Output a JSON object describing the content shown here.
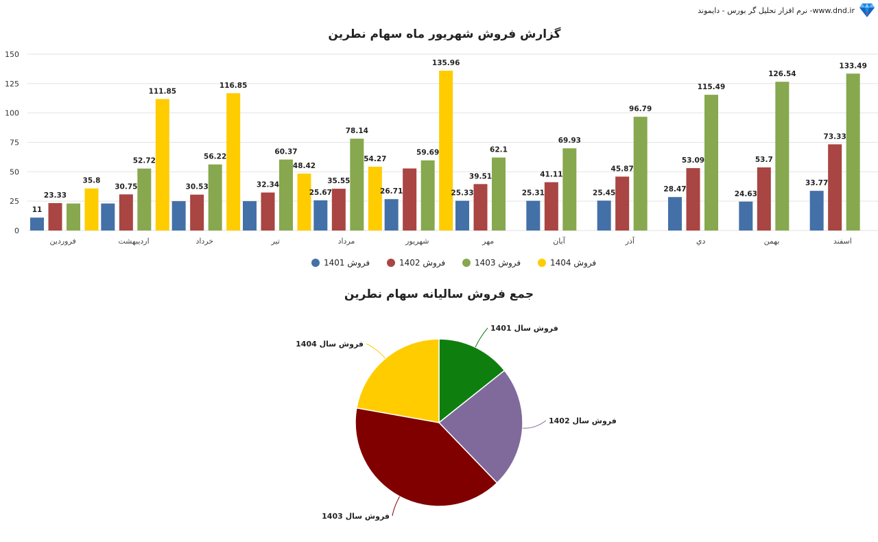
{
  "header": {
    "brand_text": "نرم افزار تحلیل گر بورس - دایموند -www.dnd.ir",
    "logo_icon": "diamond-icon"
  },
  "colors": {
    "s1401": "#4470A8",
    "s1402": "#A94542",
    "s1403": "#87A84E",
    "s1404": "#FFCC00",
    "pie1401": "#0E7F0E",
    "pie1402": "#7F6A9B",
    "pie1403": "#800000",
    "pie1404": "#FFCC00",
    "grid": "#E2E2E2"
  },
  "chart_data": [
    {
      "type": "bar",
      "title": "گزارش فروش شهریور ماه سهام نطرین",
      "xlabel": "",
      "ylabel": "",
      "ylim": [
        0,
        150
      ],
      "yticks": [
        0,
        25,
        50,
        75,
        100,
        125,
        150
      ],
      "grid": true,
      "legend_position": "bottom",
      "categories": [
        "فروردین",
        "اردیبهشت",
        "خرداد",
        "تیر",
        "مرداد",
        "شهریور",
        "مهر",
        "آبان",
        "آذر",
        "دي",
        "بهمن",
        "اسفند"
      ],
      "series": [
        {
          "name": "فروش 1401",
          "color": "#4470A8",
          "values": [
            11,
            23.0,
            25.0,
            25.0,
            25.67,
            26.71,
            25.33,
            25.31,
            25.45,
            28.47,
            24.63,
            33.77
          ],
          "labels": [
            "11",
            "",
            "",
            "",
            "25.67",
            "26.71",
            "25.33",
            "25.31",
            "25.45",
            "28.47",
            "24.63",
            "33.77"
          ]
        },
        {
          "name": "فروش 1402",
          "color": "#A94542",
          "values": [
            23.33,
            30.75,
            30.53,
            32.34,
            35.55,
            52.8,
            39.51,
            41.11,
            45.87,
            53.09,
            53.7,
            73.33
          ],
          "labels": [
            "23.33",
            "30.75",
            "30.53",
            "32.34",
            "35.55",
            "",
            "39.51",
            "41.11",
            "45.87",
            "53.09",
            "53.7",
            "73.33"
          ]
        },
        {
          "name": "فروش 1403",
          "color": "#87A84E",
          "values": [
            23.0,
            52.72,
            56.22,
            60.37,
            78.14,
            59.69,
            62.1,
            69.93,
            96.79,
            115.49,
            126.54,
            133.49
          ],
          "labels": [
            "",
            "52.72",
            "56.22",
            "60.37",
            "78.14",
            "59.69",
            "62.1",
            "69.93",
            "96.79",
            "115.49",
            "126.54",
            "133.49"
          ]
        },
        {
          "name": "فروش 1404",
          "color": "#FFCC00",
          "values": [
            35.8,
            111.85,
            116.85,
            48.42,
            54.27,
            135.96,
            null,
            null,
            null,
            null,
            null,
            null
          ],
          "labels": [
            "35.8",
            "111.85",
            "116.85",
            "48.42",
            "54.27",
            "135.96",
            "",
            "",
            "",
            "",
            "",
            ""
          ]
        }
      ]
    },
    {
      "type": "pie",
      "title": "جمع فروش سالیانه سهام نطرین",
      "slices": [
        {
          "label": "فروش سال 1401",
          "value": 14.3,
          "color": "#0E7F0E"
        },
        {
          "label": "فروش سال 1402",
          "value": 23.5,
          "color": "#7F6A9B"
        },
        {
          "label": "فروش سال 1403",
          "value": 40.0,
          "color": "#800000"
        },
        {
          "label": "فروش سال 1404",
          "value": 22.2,
          "color": "#FFCC00"
        }
      ]
    }
  ]
}
